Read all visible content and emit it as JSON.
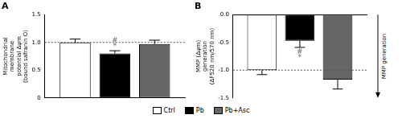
{
  "chart_data": [
    {
      "type": "bar",
      "title": "A",
      "y_label": [
        "Mitochondrial",
        "membrane",
        "potential Δψm",
        "(bound safranin O)"
      ],
      "categories": [
        null
      ],
      "series": [
        {
          "name": "Ctrl",
          "color": "#ffffff",
          "values": [
            1.0
          ],
          "errors": [
            0.06
          ]
        },
        {
          "name": "Pb",
          "color": "#000000",
          "values": [
            0.8
          ],
          "errors": [
            0.05
          ]
        },
        {
          "name": "Pb+Asc",
          "color": "#666666",
          "values": [
            0.97
          ],
          "errors": [
            0.07
          ]
        }
      ],
      "annotations": [
        {
          "series": "Pb",
          "text": "#"
        },
        {
          "series": "Pb",
          "text": "*"
        }
      ],
      "reference_line": 1.0,
      "ylim": [
        0,
        1.5
      ],
      "yticks": [
        0,
        0.5,
        {
          "value": 1,
          "label": "1.0"
        },
        1.5
      ],
      "grid": false,
      "tick_labels": "y",
      "legend": "bottom"
    },
    {
      "type": "bar",
      "title": "B",
      "y_label": [
        "MMP (Δψm)",
        "generation",
        "(ΔF520 nm/570 nm)"
      ],
      "categories": [
        null
      ],
      "series": [
        {
          "name": "Ctrl",
          "color": "#ffffff",
          "values": [
            -1.0
          ],
          "errors": [
            0.08
          ]
        },
        {
          "name": "Pb",
          "color": "#000000",
          "values": [
            -0.47
          ],
          "errors": [
            0.12
          ]
        },
        {
          "name": "Pb+Asc",
          "color": "#666666",
          "values": [
            -1.17
          ],
          "errors": [
            0.17
          ]
        }
      ],
      "annotations": [
        {
          "series": "Pb",
          "text": "#"
        },
        {
          "series": "Pb",
          "text": "*"
        }
      ],
      "reference_line": -1.0,
      "arrow_label": "MMP generation",
      "ylim": [
        -1.5,
        0
      ],
      "yticks": [
        {
          "value": 0,
          "label": "0.0"
        },
        -0.5,
        {
          "value": -1,
          "label": "-1.0"
        },
        -1.5
      ],
      "grid": false,
      "tick_labels": "y"
    }
  ]
}
